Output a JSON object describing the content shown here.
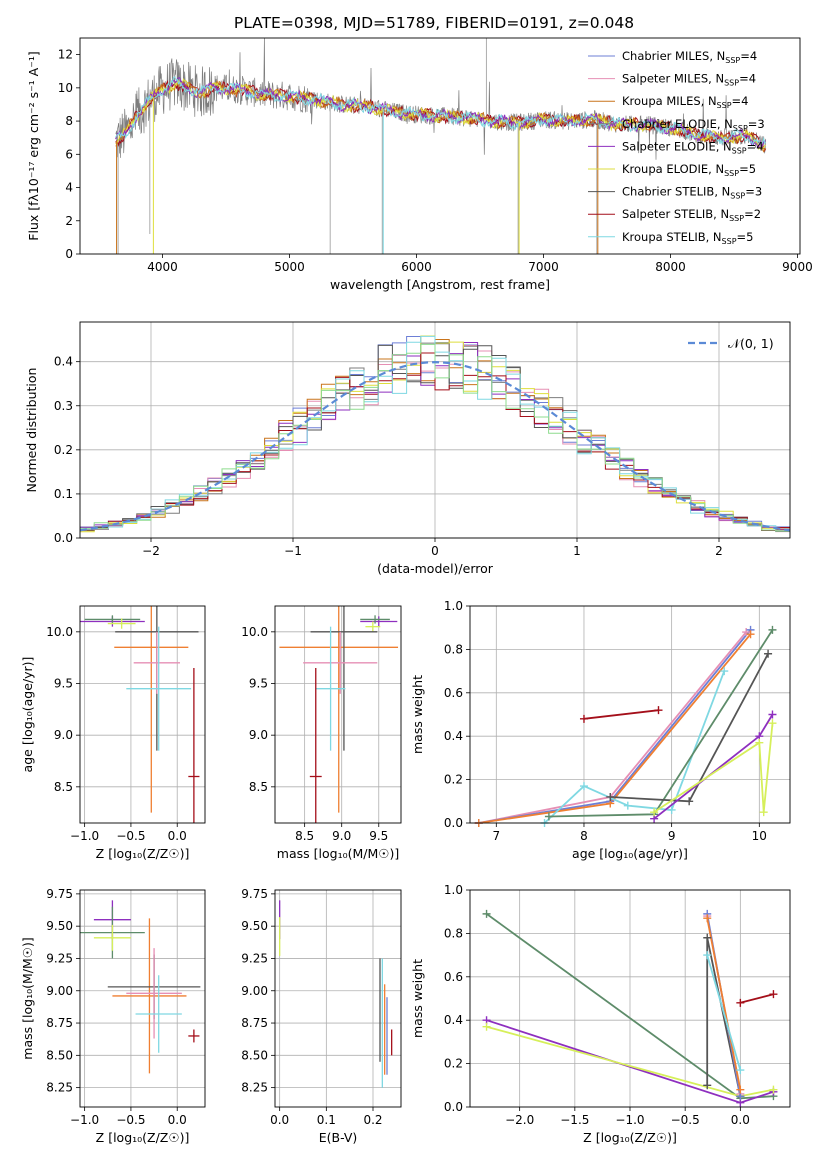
{
  "title": "PLATE=0398, MJD=51789, FIBERID=0191, z=0.048",
  "colors": {
    "Chabrier MILES": "#6d7fd6",
    "Salpeter MILES": "#e68fb4",
    "Kroupa MILES": "#c9741b",
    "Chabrier ELODIE": "#7d7d7d",
    "Salpeter ELODIE": "#8e2fbf",
    "Kroupa ELODIE": "#dede3c",
    "Chabrier STELIB": "#555555",
    "Salpeter STELIB": "#a40f1a",
    "Kroupa STELIB": "#7fd8e2",
    "orange": "#ef7f32",
    "green": "#5e8c6a",
    "lime": "#d6ef5a",
    "normal": "#5b8ad6"
  },
  "chart_data": [
    {
      "id": "spectrum",
      "type": "line",
      "title": "PLATE=0398, MJD=51789, FIBERID=0191, z=0.048",
      "xlabel": "wavelength [Angstrom, rest frame]",
      "ylabel": "Flux [fλ10⁻¹⁷ erg cm⁻² s⁻¹ A⁻¹]",
      "xlim": [
        3350,
        9020
      ],
      "ylim": [
        0,
        13
      ],
      "xticks": [
        4000,
        5000,
        6000,
        7000,
        8000,
        9000
      ],
      "yticks": [
        0,
        2,
        4,
        6,
        8,
        10,
        12
      ],
      "grid": false,
      "legend_position": "top-right",
      "legend": [
        {
          "label": "Chabrier MILES, N",
          "sub": "SSP",
          "suffix": "=4",
          "color": "#6d7fd6"
        },
        {
          "label": "Salpeter MILES, N",
          "sub": "SSP",
          "suffix": "=4",
          "color": "#e68fb4"
        },
        {
          "label": "Kroupa MILES, N",
          "sub": "SSP",
          "suffix": "=4",
          "color": "#c9741b"
        },
        {
          "label": "Chabrier ELODIE, N",
          "sub": "SSP",
          "suffix": "=3",
          "color": "#7d7d7d"
        },
        {
          "label": "Salpeter ELODIE, N",
          "sub": "SSP",
          "suffix": "=4",
          "color": "#8e2fbf"
        },
        {
          "label": "Kroupa ELODIE, N",
          "sub": "SSP",
          "suffix": "=5",
          "color": "#dede3c"
        },
        {
          "label": "Chabrier STELIB, N",
          "sub": "SSP",
          "suffix": "=3",
          "color": "#555555"
        },
        {
          "label": "Salpeter STELIB, N",
          "sub": "SSP",
          "suffix": "=2",
          "color": "#a40f1a"
        },
        {
          "label": "Kroupa STELIB, N",
          "sub": "SSP",
          "suffix": "=5",
          "color": "#7fd8e2"
        }
      ],
      "data_trend": {
        "x": [
          3630,
          3700,
          3800,
          3900,
          4000,
          4100,
          4200,
          4300,
          4400,
          4600,
          4800,
          5000,
          5200,
          5400,
          5600,
          5800,
          6000,
          6200,
          6400,
          6600,
          6800,
          7000,
          7200,
          7400,
          7600,
          7800,
          8000,
          8200,
          8400,
          8600,
          8750
        ],
        "y": [
          6.8,
          7.2,
          8.3,
          9.3,
          9.9,
          10.3,
          10.0,
          9.7,
          10.0,
          9.9,
          9.6,
          9.5,
          9.3,
          9.0,
          8.9,
          8.6,
          8.4,
          8.3,
          8.2,
          8.0,
          7.9,
          8.1,
          8.0,
          8.1,
          7.8,
          7.8,
          7.6,
          7.2,
          7.0,
          7.1,
          6.5
        ]
      }
    },
    {
      "id": "residuals",
      "type": "line",
      "xlabel": "(data-model)/error",
      "ylabel": "Normed distribution",
      "xlim": [
        -2.5,
        2.5
      ],
      "ylim": [
        0,
        0.49
      ],
      "xticks": [
        -2,
        -1,
        0,
        1,
        2
      ],
      "yticks": [
        0.0,
        0.1,
        0.2,
        0.3,
        0.4
      ],
      "grid": true,
      "legend_position": "top-right",
      "legend": [
        {
          "label": "𝒩(0, 1)",
          "color": "#5b8ad6",
          "style": "dashed"
        }
      ],
      "normal": {
        "mean": 0,
        "sd": 1
      }
    },
    {
      "id": "age-vs-Z",
      "type": "scatter",
      "xlabel": "Z [log₁₀(Z/Z☉)]",
      "ylabel": "age  [log₁₀(age/yr)]",
      "xlim": [
        -1.05,
        0.3
      ],
      "ylim": [
        8.15,
        10.25
      ],
      "xticks": [
        -1.0,
        -0.5,
        0.0
      ],
      "yticks": [
        8.5,
        9.0,
        9.5,
        10.0
      ],
      "grid": true,
      "points": [
        {
          "x": -0.7,
          "y": 10.1,
          "xerr": 0.35,
          "yerr": 0.05,
          "color": "#8e2fbf"
        },
        {
          "x": -0.7,
          "y": 10.12,
          "xerr": 0.3,
          "yerr": 0.04,
          "color": "#5e8c6a"
        },
        {
          "x": -0.6,
          "y": 10.08,
          "xerr": 0.15,
          "yerr": 0.05,
          "color": "#d6ef5a"
        },
        {
          "x": -0.28,
          "y": 9.85,
          "xerr": 0.4,
          "yerr": 1.6,
          "color": "#ef7f32"
        },
        {
          "x": -0.22,
          "y": 10.0,
          "xerr": 0.45,
          "yerr": 1.15,
          "color": "#555555"
        },
        {
          "x": -0.22,
          "y": 9.7,
          "xerr": 0.25,
          "yerr": 0.3,
          "color": "#e68fb4"
        },
        {
          "x": -0.2,
          "y": 9.45,
          "xerr": 0.35,
          "yerr": 0.6,
          "color": "#7fd8e2"
        },
        {
          "x": 0.18,
          "y": 8.6,
          "xerr": 0.06,
          "yerr": 1.05,
          "color": "#a40f1a"
        }
      ]
    },
    {
      "id": "age-vs-mass",
      "type": "scatter",
      "xlabel": "mass [log₁₀(M/M☉)]",
      "ylabel": "",
      "xlim": [
        8.1,
        9.8
      ],
      "ylim": [
        8.15,
        10.25
      ],
      "xticks": [
        8.5,
        9.0,
        9.5
      ],
      "yticks": [
        8.5,
        9.0,
        9.5,
        10.0
      ],
      "grid": true,
      "points": [
        {
          "x": 9.5,
          "y": 10.1,
          "xerr": 0.25,
          "yerr": 0.05,
          "color": "#8e2fbf"
        },
        {
          "x": 9.45,
          "y": 10.12,
          "xerr": 0.2,
          "yerr": 0.04,
          "color": "#5e8c6a"
        },
        {
          "x": 9.42,
          "y": 10.05,
          "xerr": 0.1,
          "yerr": 0.05,
          "color": "#d6ef5a"
        },
        {
          "x": 8.96,
          "y": 9.85,
          "xerr": 0.8,
          "yerr": 1.6,
          "color": "#ef7f32"
        },
        {
          "x": 9.03,
          "y": 10.0,
          "xerr": 0.45,
          "yerr": 1.15,
          "color": "#555555"
        },
        {
          "x": 8.98,
          "y": 9.7,
          "xerr": 0.5,
          "yerr": 0.3,
          "color": "#e68fb4"
        },
        {
          "x": 8.85,
          "y": 9.45,
          "xerr": 0.2,
          "yerr": 0.6,
          "color": "#7fd8e2"
        },
        {
          "x": 8.65,
          "y": 8.6,
          "xerr": 0.08,
          "yerr": 1.05,
          "color": "#a40f1a"
        }
      ]
    },
    {
      "id": "weight-vs-age",
      "type": "line",
      "xlabel": "age  [log₁₀(age/yr)]",
      "ylabel": "mass weight",
      "xlim": [
        6.7,
        10.35
      ],
      "ylim": [
        0,
        1.0
      ],
      "xticks": [
        7,
        8,
        9,
        10
      ],
      "yticks": [
        0.0,
        0.2,
        0.4,
        0.6,
        0.8,
        1.0
      ],
      "grid": true,
      "series": [
        {
          "color": "#a40f1a",
          "x": [
            8.0,
            8.85
          ],
          "y": [
            0.48,
            0.52
          ]
        },
        {
          "color": "#e68fb4",
          "x": [
            6.8,
            8.3,
            9.85
          ],
          "y": [
            0.0,
            0.12,
            0.88
          ]
        },
        {
          "color": "#6d7fd6",
          "x": [
            6.8,
            8.3,
            9.9
          ],
          "y": [
            0.0,
            0.1,
            0.89
          ]
        },
        {
          "color": "#ef7f32",
          "x": [
            6.8,
            8.3,
            9.9
          ],
          "y": [
            0.0,
            0.09,
            0.87
          ]
        },
        {
          "color": "#7fd8e2",
          "x": [
            7.55,
            8.0,
            8.5,
            9.0,
            9.6
          ],
          "y": [
            0.0,
            0.17,
            0.08,
            0.06,
            0.7
          ]
        },
        {
          "color": "#5e8c6a",
          "x": [
            7.6,
            8.8,
            10.15
          ],
          "y": [
            0.03,
            0.04,
            0.89
          ]
        },
        {
          "color": "#555555",
          "x": [
            8.3,
            9.2,
            10.1
          ],
          "y": [
            0.12,
            0.1,
            0.78
          ]
        },
        {
          "color": "#8e2fbf",
          "x": [
            8.8,
            10.0,
            10.15
          ],
          "y": [
            0.02,
            0.4,
            0.5
          ]
        },
        {
          "color": "#d6ef5a",
          "x": [
            8.8,
            10.0,
            10.05,
            10.15
          ],
          "y": [
            0.05,
            0.37,
            0.05,
            0.46
          ]
        }
      ]
    },
    {
      "id": "mass-vs-Z",
      "type": "scatter",
      "xlabel": "Z [log₁₀(Z/Z☉)]",
      "ylabel": "mass [log₁₀(M/M☉)]",
      "xlim": [
        -1.05,
        0.3
      ],
      "ylim": [
        8.1,
        9.78
      ],
      "xticks": [
        -1.0,
        -0.5,
        0.0
      ],
      "yticks": [
        8.25,
        8.5,
        8.75,
        9.0,
        9.25,
        9.5,
        9.75
      ],
      "grid": true,
      "points": [
        {
          "x": -0.7,
          "y": 9.55,
          "xerr": 0.2,
          "yerr": 0.15,
          "color": "#8e2fbf"
        },
        {
          "x": -0.7,
          "y": 9.45,
          "xerr": 0.35,
          "yerr": 0.2,
          "color": "#5e8c6a"
        },
        {
          "x": -0.7,
          "y": 9.41,
          "xerr": 0.2,
          "yerr": 0.1,
          "color": "#d6ef5a"
        },
        {
          "x": -0.3,
          "y": 8.96,
          "xerr": 0.4,
          "yerr": 0.6,
          "color": "#ef7f32"
        },
        {
          "x": -0.25,
          "y": 9.03,
          "xerr": 0.5,
          "yerr": 0.25,
          "color": "#555555"
        },
        {
          "x": -0.25,
          "y": 8.98,
          "xerr": 0.3,
          "yerr": 0.35,
          "color": "#e68fb4"
        },
        {
          "x": -0.2,
          "y": 8.82,
          "xerr": 0.25,
          "yerr": 0.3,
          "color": "#7fd8e2"
        },
        {
          "x": 0.18,
          "y": 8.65,
          "xerr": 0.06,
          "yerr": 0.05,
          "color": "#a40f1a"
        }
      ]
    },
    {
      "id": "mass-vs-ebv",
      "type": "scatter",
      "xlabel": "E(B-V)",
      "ylabel": "",
      "xlim": [
        -0.01,
        0.26
      ],
      "ylim": [
        8.1,
        9.78
      ],
      "xticks": [
        0.0,
        0.1,
        0.2
      ],
      "yticks": [
        8.25,
        8.5,
        8.75,
        9.0,
        9.25,
        9.5,
        9.75
      ],
      "grid": true,
      "points": [
        {
          "x": 0.0,
          "y": 9.55,
          "xerr": 0,
          "yerr": 0.15,
          "color": "#8e2fbf"
        },
        {
          "x": 0.0,
          "y": 9.42,
          "xerr": 0,
          "yerr": 0.15,
          "color": "#d6ef5a"
        },
        {
          "x": 0.215,
          "y": 8.85,
          "xerr": 0,
          "yerr": 0.4,
          "color": "#555555"
        },
        {
          "x": 0.22,
          "y": 8.75,
          "xerr": 0,
          "yerr": 0.5,
          "color": "#7fd8e2"
        },
        {
          "x": 0.225,
          "y": 8.7,
          "xerr": 0,
          "yerr": 0.35,
          "color": "#ef7f32"
        },
        {
          "x": 0.23,
          "y": 8.65,
          "xerr": 0,
          "yerr": 0.3,
          "color": "#6d7fd6"
        },
        {
          "x": 0.24,
          "y": 8.6,
          "xerr": 0,
          "yerr": 0.1,
          "color": "#a40f1a"
        }
      ]
    },
    {
      "id": "weight-vs-Z",
      "type": "line",
      "xlabel": "Z [log₁₀(Z/Z☉)]",
      "ylabel": "mass weight",
      "xlim": [
        -2.45,
        0.45
      ],
      "ylim": [
        0,
        1.0
      ],
      "xticks": [
        -2.0,
        -1.5,
        -1.0,
        -0.5,
        0.0
      ],
      "yticks": [
        0.0,
        0.2,
        0.4,
        0.6,
        0.8,
        1.0
      ],
      "grid": true,
      "series": [
        {
          "color": "#5e8c6a",
          "x": [
            -2.3,
            0.0,
            0.3
          ],
          "y": [
            0.89,
            0.04,
            0.05
          ]
        },
        {
          "color": "#8e2fbf",
          "x": [
            -2.3,
            0.0,
            0.3
          ],
          "y": [
            0.4,
            0.02,
            0.07
          ]
        },
        {
          "color": "#d6ef5a",
          "x": [
            -2.3,
            0.0,
            0.3
          ],
          "y": [
            0.37,
            0.05,
            0.08
          ]
        },
        {
          "color": "#a40f1a",
          "x": [
            0.0,
            0.3
          ],
          "y": [
            0.48,
            0.52
          ]
        },
        {
          "color": "#555555",
          "x": [
            -0.3,
            -0.3,
            0.0
          ],
          "y": [
            0.1,
            0.78,
            0.05
          ]
        },
        {
          "color": "#e68fb4",
          "x": [
            -0.3,
            0.0
          ],
          "y": [
            0.88,
            0.06
          ]
        },
        {
          "color": "#6d7fd6",
          "x": [
            -0.3,
            0.0
          ],
          "y": [
            0.89,
            0.05
          ]
        },
        {
          "color": "#ef7f32",
          "x": [
            -0.3,
            0.0
          ],
          "y": [
            0.87,
            0.08
          ]
        },
        {
          "color": "#7fd8e2",
          "x": [
            -0.3,
            0.0
          ],
          "y": [
            0.7,
            0.17
          ]
        }
      ]
    }
  ]
}
